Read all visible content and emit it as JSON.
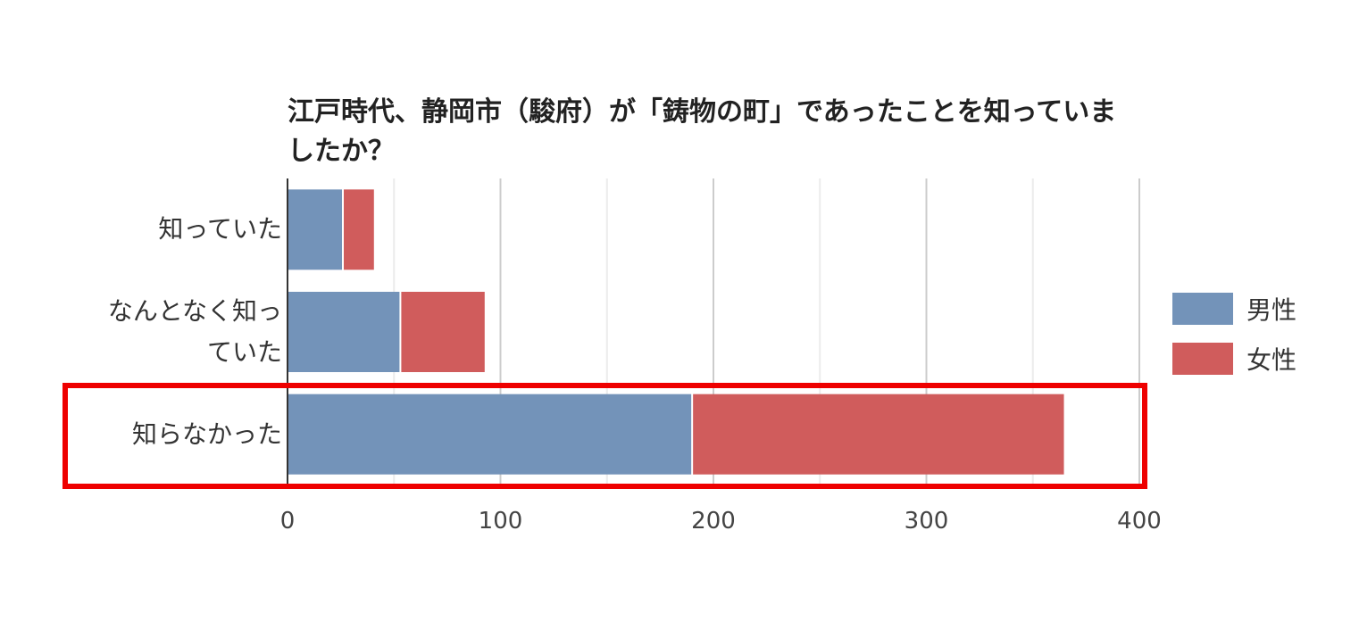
{
  "chart_data": {
    "type": "stacked-barh",
    "title": "江戸時代、静岡市（駿府）が「鋳物の町」であったことを知っていましたか？",
    "categories": [
      "知っていた",
      "なんとなく知っていた",
      "知らなかった"
    ],
    "series": [
      {
        "name": "男性",
        "color": "#7393b9",
        "values": [
          26,
          53,
          190
        ]
      },
      {
        "name": "女性",
        "color": "#d05c5c",
        "values": [
          15,
          40,
          175
        ]
      }
    ],
    "xlim": [
      0,
      400
    ],
    "xticks": [
      0,
      100,
      200,
      300,
      400
    ],
    "minor_grid": [
      50,
      150,
      250,
      350
    ],
    "grid": true,
    "legend": "right"
  }
}
